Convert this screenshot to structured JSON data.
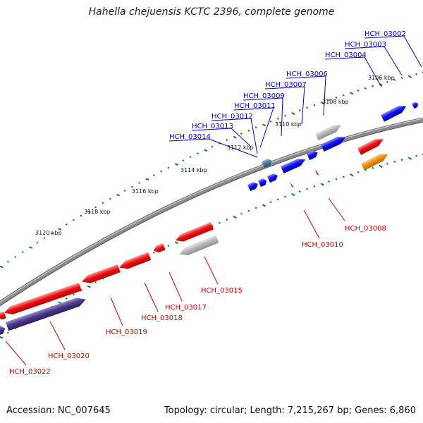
{
  "title": "Hahella chejuensis KCTC 2396, complete genome",
  "footer": {
    "accession": "Accession: NC_007645",
    "topology": "Topology: circular; Length: 7,215,267 bp; Genes: 6,860"
  },
  "colors": {
    "backbone": "#808080",
    "forward_label": "#0000cc",
    "reverse_label": "#cc0000",
    "tick": "#1a7a1a",
    "red_gene": "#ee1111",
    "blue_gene": "#1111ee",
    "gray_gene": "#b0b0b0",
    "orange_gene": "#f09010",
    "purple_gene": "#4a3a8a",
    "steel_gene": "#4a78a8"
  },
  "kbp_labels": [
    "3106 kbp",
    "3108 kbp",
    "3110 kbp",
    "3112 kbp",
    "3114 kbp",
    "3116 kbp",
    "3118 kbp",
    "3120 kbp"
  ],
  "genes_top": [
    "HCH_03002",
    "HCH_03003",
    "HCH_03004",
    "HCH_03006",
    "HCH_03007",
    "HCH_03009",
    "HCH_03011",
    "HCH_03012",
    "HCH_03013",
    "HCH_03014"
  ],
  "genes_bottom": [
    "HCH_03008",
    "HCH_03010",
    "HCH_03015",
    "HCH_03017",
    "HCH_03018",
    "HCH_03019",
    "HCH_03020",
    "HCH_03022"
  ]
}
